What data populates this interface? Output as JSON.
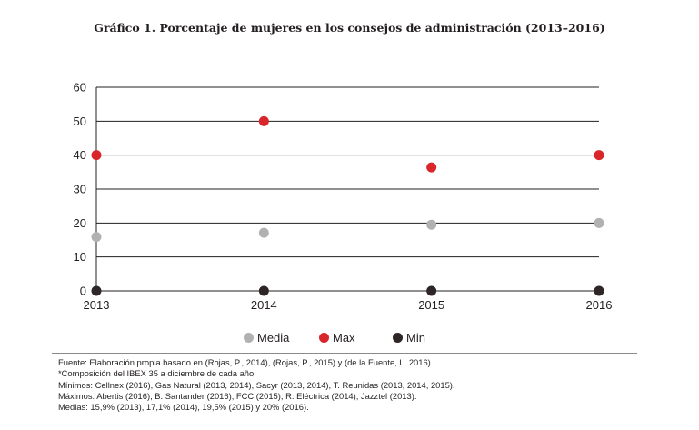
{
  "title": "Gráfico 1. Porcentaje de mujeres en los consejos de administración (2013–2016)",
  "chart_data": {
    "type": "scatter",
    "title": "Gráfico 1. Porcentaje de mujeres en los consejos de administración (2013–2016)",
    "xlabel": "",
    "ylabel": "",
    "categories": [
      "2013",
      "2014",
      "2015",
      "2016"
    ],
    "ylim": [
      0,
      60
    ],
    "yticks": [
      "0",
      "10",
      "20",
      "30",
      "40",
      "50",
      "60"
    ],
    "grid": "horizontal",
    "legend_position": "bottom",
    "series": [
      {
        "name": "Media",
        "color": "#b1b1b1",
        "values": [
          15.9,
          17.1,
          19.5,
          20
        ]
      },
      {
        "name": "Max",
        "color": "#d8262b",
        "values": [
          40,
          50,
          36.4,
          40
        ]
      },
      {
        "name": "Min",
        "color": "#2e2526",
        "values": [
          0,
          0,
          0,
          0
        ]
      }
    ]
  },
  "notes": [
    "Fuente: Elaboración propia basado en (Rojas, P., 2014), (Rojas, P., 2015) y (de la Fuente, L. 2016).",
    "*Composición del IBEX 35 a diciembre de cada año.",
    "Mínimos: Cellnex (2016), Gas Natural (2013, 2014), Sacyr (2013, 2014), T. Reunidas (2013, 2014, 2015).",
    "Máximos: Abertis (2016),  B. Santander (2016), FCC (2015), R. Eléctrica (2014), Jazztel (2013).",
    "Medias: 15,9% (2013), 17,1% (2014), 19,5% (2015) y 20% (2016)."
  ]
}
